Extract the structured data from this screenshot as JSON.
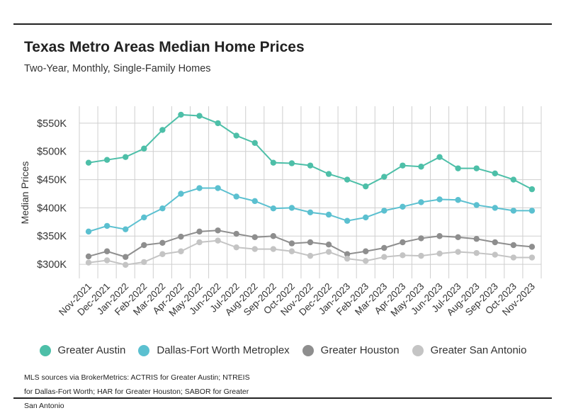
{
  "title": "Texas Metro Areas Median Home Prices",
  "subtitle": "Two-Year, Monthly, Single-Family Homes",
  "source": "MLS sources via BrokerMetrics: ACTRIS for Greater Austin; NTREIS for Dallas-Fort Worth; HAR for Greater Houston; SABOR for Greater San Antonio",
  "chart_data": {
    "type": "line",
    "title": "Texas Metro Areas Median Home Prices",
    "subtitle": "Two-Year, Monthly, Single-Family Homes",
    "xlabel": "",
    "ylabel": "Median Prices",
    "ylim": [
      275000,
      580000
    ],
    "yticks": [
      300000,
      350000,
      400000,
      450000,
      500000,
      550000
    ],
    "ytick_labels": [
      "$300K",
      "$350K",
      "$400K",
      "$450K",
      "$500K",
      "$550K"
    ],
    "grid": true,
    "legend": "bottom",
    "categories": [
      "Nov-2021",
      "Dec-2021",
      "Jan-2022",
      "Feb-2022",
      "Mar-2022",
      "Apr-2022",
      "May-2022",
      "Jun-2022",
      "Jul-2022",
      "Aug-2022",
      "Sep-2022",
      "Oct-2022",
      "Nov-2022",
      "Dec-2022",
      "Jan-2023",
      "Feb-2023",
      "Mar-2023",
      "Apr-2023",
      "May-2023",
      "Jun-2023",
      "Jul-2023",
      "Aug-2023",
      "Sep-2023",
      "Oct-2023",
      "Nov-2023"
    ],
    "series": [
      {
        "name": "Greater Austin",
        "color": "#4dbfa8",
        "values": [
          480000,
          485000,
          490000,
          505000,
          538000,
          565000,
          563000,
          550000,
          528000,
          515000,
          480000,
          479000,
          475000,
          460000,
          450000,
          438000,
          455000,
          475000,
          473000,
          490000,
          470000,
          470000,
          461000,
          450000,
          433000
        ]
      },
      {
        "name": "Dallas-Fort Worth Metroplex",
        "color": "#5bc0d0",
        "values": [
          358000,
          368000,
          362000,
          383000,
          399000,
          425000,
          435000,
          435000,
          420000,
          412000,
          399000,
          400000,
          392000,
          388000,
          377000,
          383000,
          395000,
          402000,
          410000,
          415000,
          414000,
          405000,
          400000,
          395000,
          395000
        ]
      },
      {
        "name": "Greater Houston",
        "color": "#8e8e8e",
        "values": [
          314000,
          323000,
          313000,
          334000,
          338000,
          349000,
          358000,
          360000,
          354000,
          348000,
          350000,
          337000,
          339000,
          335000,
          318000,
          323000,
          329000,
          339000,
          346000,
          350000,
          348000,
          345000,
          339000,
          334000,
          331000
        ]
      },
      {
        "name": "Greater San Antonio",
        "color": "#c4c4c4",
        "values": [
          303000,
          307000,
          299000,
          304000,
          318000,
          323000,
          339000,
          342000,
          330000,
          327000,
          327000,
          323000,
          315000,
          322000,
          310000,
          306000,
          313000,
          316000,
          315000,
          319000,
          322000,
          320000,
          317000,
          312000,
          312000
        ]
      }
    ]
  }
}
